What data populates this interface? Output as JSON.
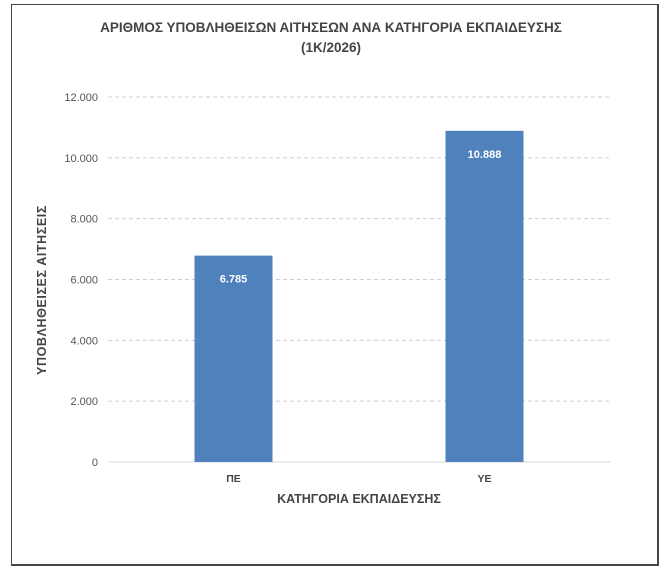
{
  "chart_data": {
    "type": "bar",
    "title": "ΑΡΙΘΜΟΣ ΥΠΟΒΛΗΘΕΙΣΩΝ ΑΙΤΗΣΕΩΝ ΑΝΑ ΚΑΤΗΓΟΡΙΑ ΕΚΠΑΙΔΕΥΣΗΣ",
    "subtitle": "(1Κ/2026)",
    "xlabel": "ΚΑΤΗΓΟΡΙΑ ΕΚΠΑΙΔΕΥΣΗΣ",
    "ylabel": "ΥΠΟΒΛΗΘΕΙΣΕΣ ΑΙΤΗΣΕΙΣ",
    "categories": [
      "ΠΕ",
      "ΥΕ"
    ],
    "values": [
      6785,
      10888
    ],
    "data_labels": [
      "6.785",
      "10.888"
    ],
    "ylim": [
      0,
      12000
    ],
    "yticks": [
      0,
      2000,
      4000,
      6000,
      8000,
      10000,
      12000
    ],
    "ytick_labels": [
      "0",
      "2.000",
      "4.000",
      "6.000",
      "8.000",
      "10.000",
      "12.000"
    ],
    "grid": "horizontal dashed",
    "legend": "none",
    "bar_color": "#4f81bd"
  }
}
